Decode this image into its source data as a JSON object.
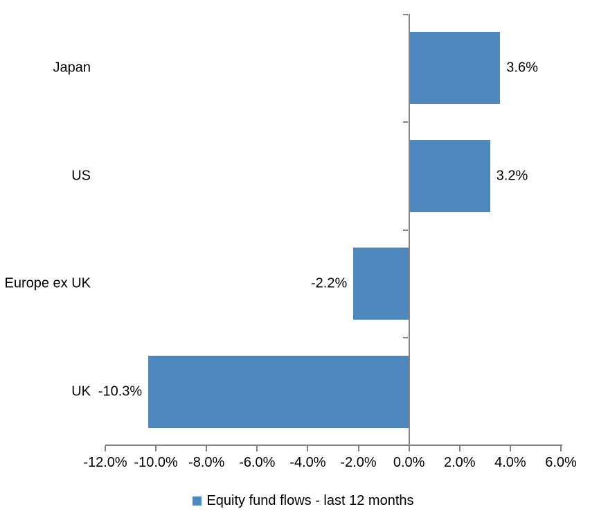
{
  "chart_data": {
    "type": "bar",
    "orientation": "horizontal",
    "title": "",
    "xlabel": "",
    "ylabel": "",
    "categories": [
      "Japan",
      "US",
      "Europe ex UK",
      "UK"
    ],
    "series": [
      {
        "name": "Equity fund flows - last 12 months",
        "values": [
          3.6,
          3.2,
          -2.2,
          -10.3
        ],
        "data_labels": [
          "3.6%",
          "3.2%",
          "-2.2%",
          "-10.3%"
        ]
      }
    ],
    "xlim": [
      -12,
      6
    ],
    "x_ticks": [
      -12,
      -10,
      -8,
      -6,
      -4,
      -2,
      0,
      2,
      4,
      6
    ],
    "x_tick_labels": [
      "-12.0%",
      "-10.0%",
      "-8.0%",
      "-6.0%",
      "-4.0%",
      "-2.0%",
      "0.0%",
      "2.0%",
      "4.0%",
      "6.0%"
    ],
    "grid": false,
    "legend": {
      "position": "bottom",
      "entries": [
        "Equity fund flows - last 12 months"
      ]
    },
    "colors": {
      "bar": "#4D87BD",
      "axis": "#848484",
      "text": "#000000",
      "background": "#FFFFFF"
    }
  }
}
